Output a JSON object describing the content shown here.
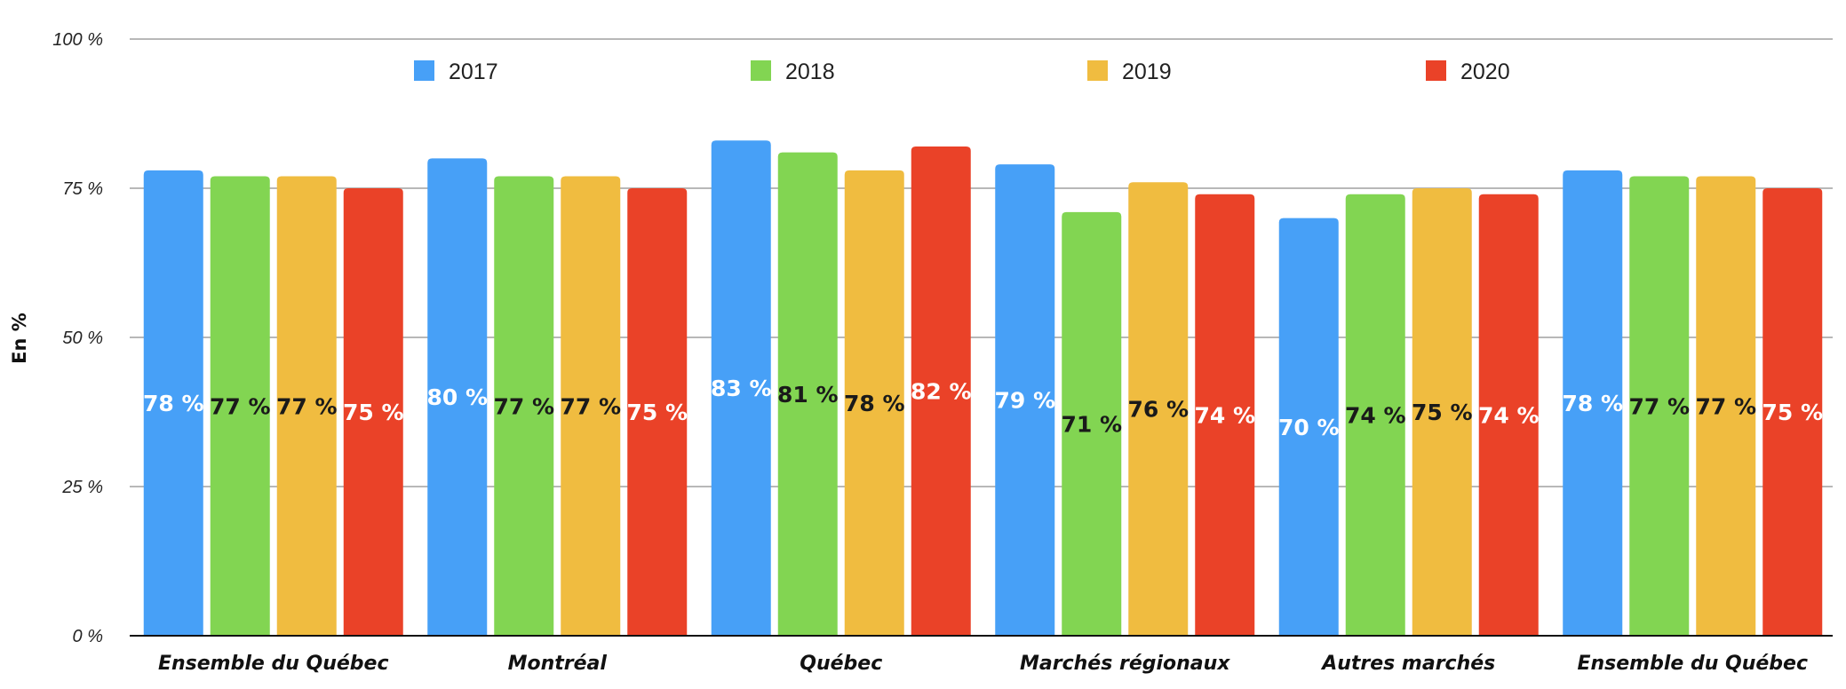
{
  "chart_data": {
    "type": "bar",
    "ylabel": "En %",
    "xlabel": "",
    "ylim": [
      0,
      100
    ],
    "yticks": [
      "0 %",
      "25 %",
      "50 %",
      "75 %",
      "100 %"
    ],
    "ytick_values": [
      0,
      25,
      50,
      75,
      100
    ],
    "grid": true,
    "legend_position": "top",
    "categories": [
      "Ensemble du Québec",
      "Montréal",
      "Québec",
      "Marchés régionaux",
      "Autres marchés",
      "Ensemble du Québec"
    ],
    "series": [
      {
        "name": "2017",
        "color": "#47a0f7",
        "label_color": "#ffffff",
        "values": [
          78,
          80,
          83,
          79,
          70,
          78
        ],
        "labels": [
          "78 %",
          "80 %",
          "83 %",
          "79 %",
          "70 %",
          "78 %"
        ]
      },
      {
        "name": "2018",
        "color": "#82d552",
        "label_color": "#1a1a1a",
        "values": [
          77,
          77,
          81,
          71,
          74,
          77
        ],
        "labels": [
          "77 %",
          "77 %",
          "81 %",
          "71 %",
          "74 %",
          "77 %"
        ]
      },
      {
        "name": "2019",
        "color": "#f0bc40",
        "label_color": "#1a1a1a",
        "values": [
          77,
          77,
          78,
          76,
          75,
          77
        ],
        "labels": [
          "77 %",
          "77 %",
          "78 %",
          "76 %",
          "75 %",
          "77 %"
        ]
      },
      {
        "name": "2020",
        "color": "#ea4228",
        "label_color": "#ffffff",
        "values": [
          75,
          75,
          82,
          74,
          74,
          75
        ],
        "labels": [
          "75 %",
          "75 %",
          "82 %",
          "74 %",
          "74 %",
          "75 %"
        ]
      }
    ]
  }
}
